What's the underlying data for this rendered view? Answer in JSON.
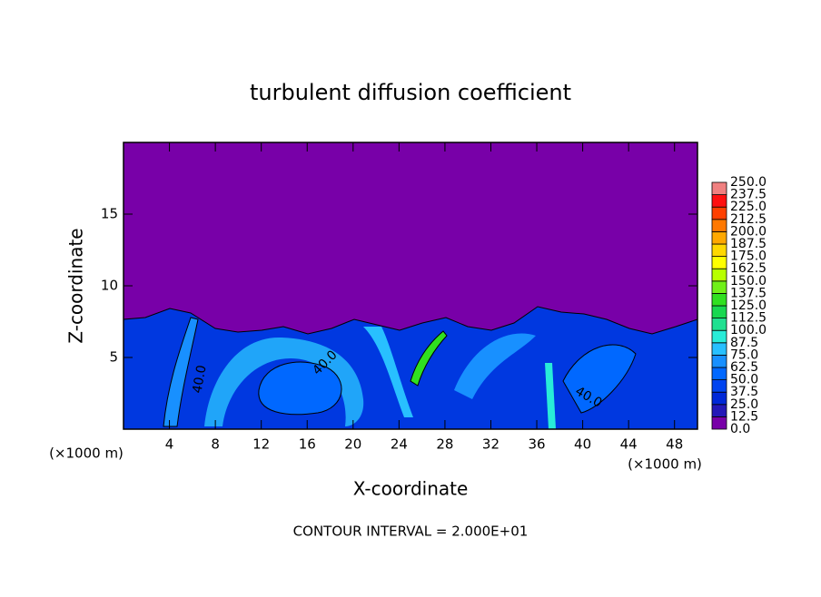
{
  "chart_data": {
    "type": "contour",
    "title": "turbulent diffusion coefficient",
    "xlabel": "X-coordinate",
    "ylabel": "Z-coordinate",
    "x_unit": "(×1000 m)",
    "y_unit": "(×1000 m)",
    "footer": "CONTOUR INTERVAL = 2.000E+01",
    "xlim": [
      0,
      50
    ],
    "ylim": [
      0,
      20
    ],
    "xticks": [
      4,
      8,
      12,
      16,
      20,
      24,
      28,
      32,
      36,
      40,
      44,
      48
    ],
    "yticks": [
      5,
      10,
      15
    ],
    "contour_labels": [
      {
        "value": 40,
        "label": "40.0"
      },
      {
        "value": 40,
        "label": "40.0"
      },
      {
        "value": 40,
        "label": "40.0"
      }
    ],
    "colorbar": {
      "levels": [
        {
          "value": 0,
          "label": "0.0"
        },
        12.5,
        {
          "value": 25,
          "label": "25.0"
        },
        37.5,
        {
          "value": 50,
          "label": "50.0"
        },
        62.5,
        {
          "value": 75,
          "label": "75.0"
        },
        87.5,
        {
          "value": 100,
          "label": "100.0"
        },
        112.5,
        {
          "value": 125,
          "label": "125.0"
        },
        137.5,
        {
          "value": 150,
          "label": "150.0"
        },
        162.5,
        {
          "value": 175,
          "label": "175.0"
        },
        187.5,
        {
          "value": 200,
          "label": "200.0"
        },
        212.5,
        {
          "value": 225,
          "label": "225.0"
        },
        237.5,
        {
          "value": 250,
          "label": "250.0"
        }
      ],
      "colors": [
        "#7800a8",
        "#2418b8",
        "#0028d8",
        "#0044f0",
        "#0068ff",
        "#1890ff",
        "#28c0ff",
        "#28ecd8",
        "#20e090",
        "#18d850",
        "#30e020",
        "#70f018",
        "#b8ff00",
        "#ffff00",
        "#ffd800",
        "#ffa800",
        "#ff7800",
        "#ff4000",
        "#ff1010",
        "#f08080"
      ]
    }
  }
}
